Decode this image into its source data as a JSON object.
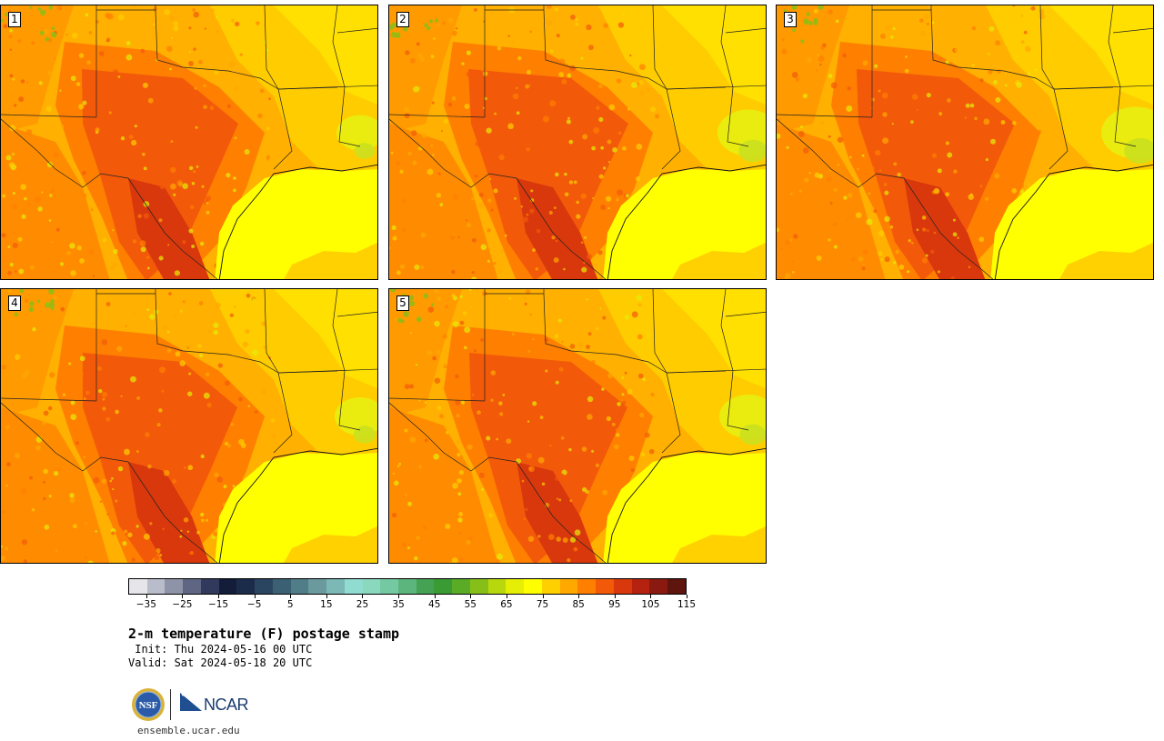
{
  "title": "2-m temperature (F) postage stamp",
  "init_line": " Init: Thu 2024-05-16 00 UTC",
  "valid_line": "Valid: Sat 2024-05-18 20 UTC",
  "website": "ensemble.ucar.edu",
  "logos": {
    "nsf": "NSF",
    "ncar": "NCAR"
  },
  "panels": [
    {
      "member": "1",
      "hot_core": 0.55,
      "cool_east": 0.15
    },
    {
      "member": "2",
      "hot_core": 0.65,
      "cool_east": 0.35
    },
    {
      "member": "3",
      "hot_core": 0.6,
      "cool_east": 0.45
    },
    {
      "member": "4",
      "hot_core": 0.5,
      "cool_east": 0.2
    },
    {
      "member": "5",
      "hot_core": 0.6,
      "cool_east": 0.3
    }
  ],
  "colorbar": {
    "colors": [
      "#e6e6ea",
      "#b9bccb",
      "#8e93a8",
      "#5f6683",
      "#313a5c",
      "#131c39",
      "#1b2c4a",
      "#2a4560",
      "#3b6074",
      "#507d87",
      "#6a9a9e",
      "#7cb8b5",
      "#90dcd0",
      "#8ad9bf",
      "#74c9a3",
      "#5cb57c",
      "#45a254",
      "#3a9a33",
      "#5aab25",
      "#86bf17",
      "#b8d80d",
      "#e6ee05",
      "#ffff00",
      "#ffd000",
      "#ffa800",
      "#ff7f00",
      "#f25a0a",
      "#d9380c",
      "#b52310",
      "#8a1a10",
      "#5e150d"
    ],
    "ticks": [
      "−35",
      "−25",
      "−15",
      "−5",
      "5",
      "15",
      "25",
      "35",
      "45",
      "55",
      "65",
      "75",
      "85",
      "95",
      "105",
      "115"
    ],
    "min": -40,
    "max": 120
  }
}
